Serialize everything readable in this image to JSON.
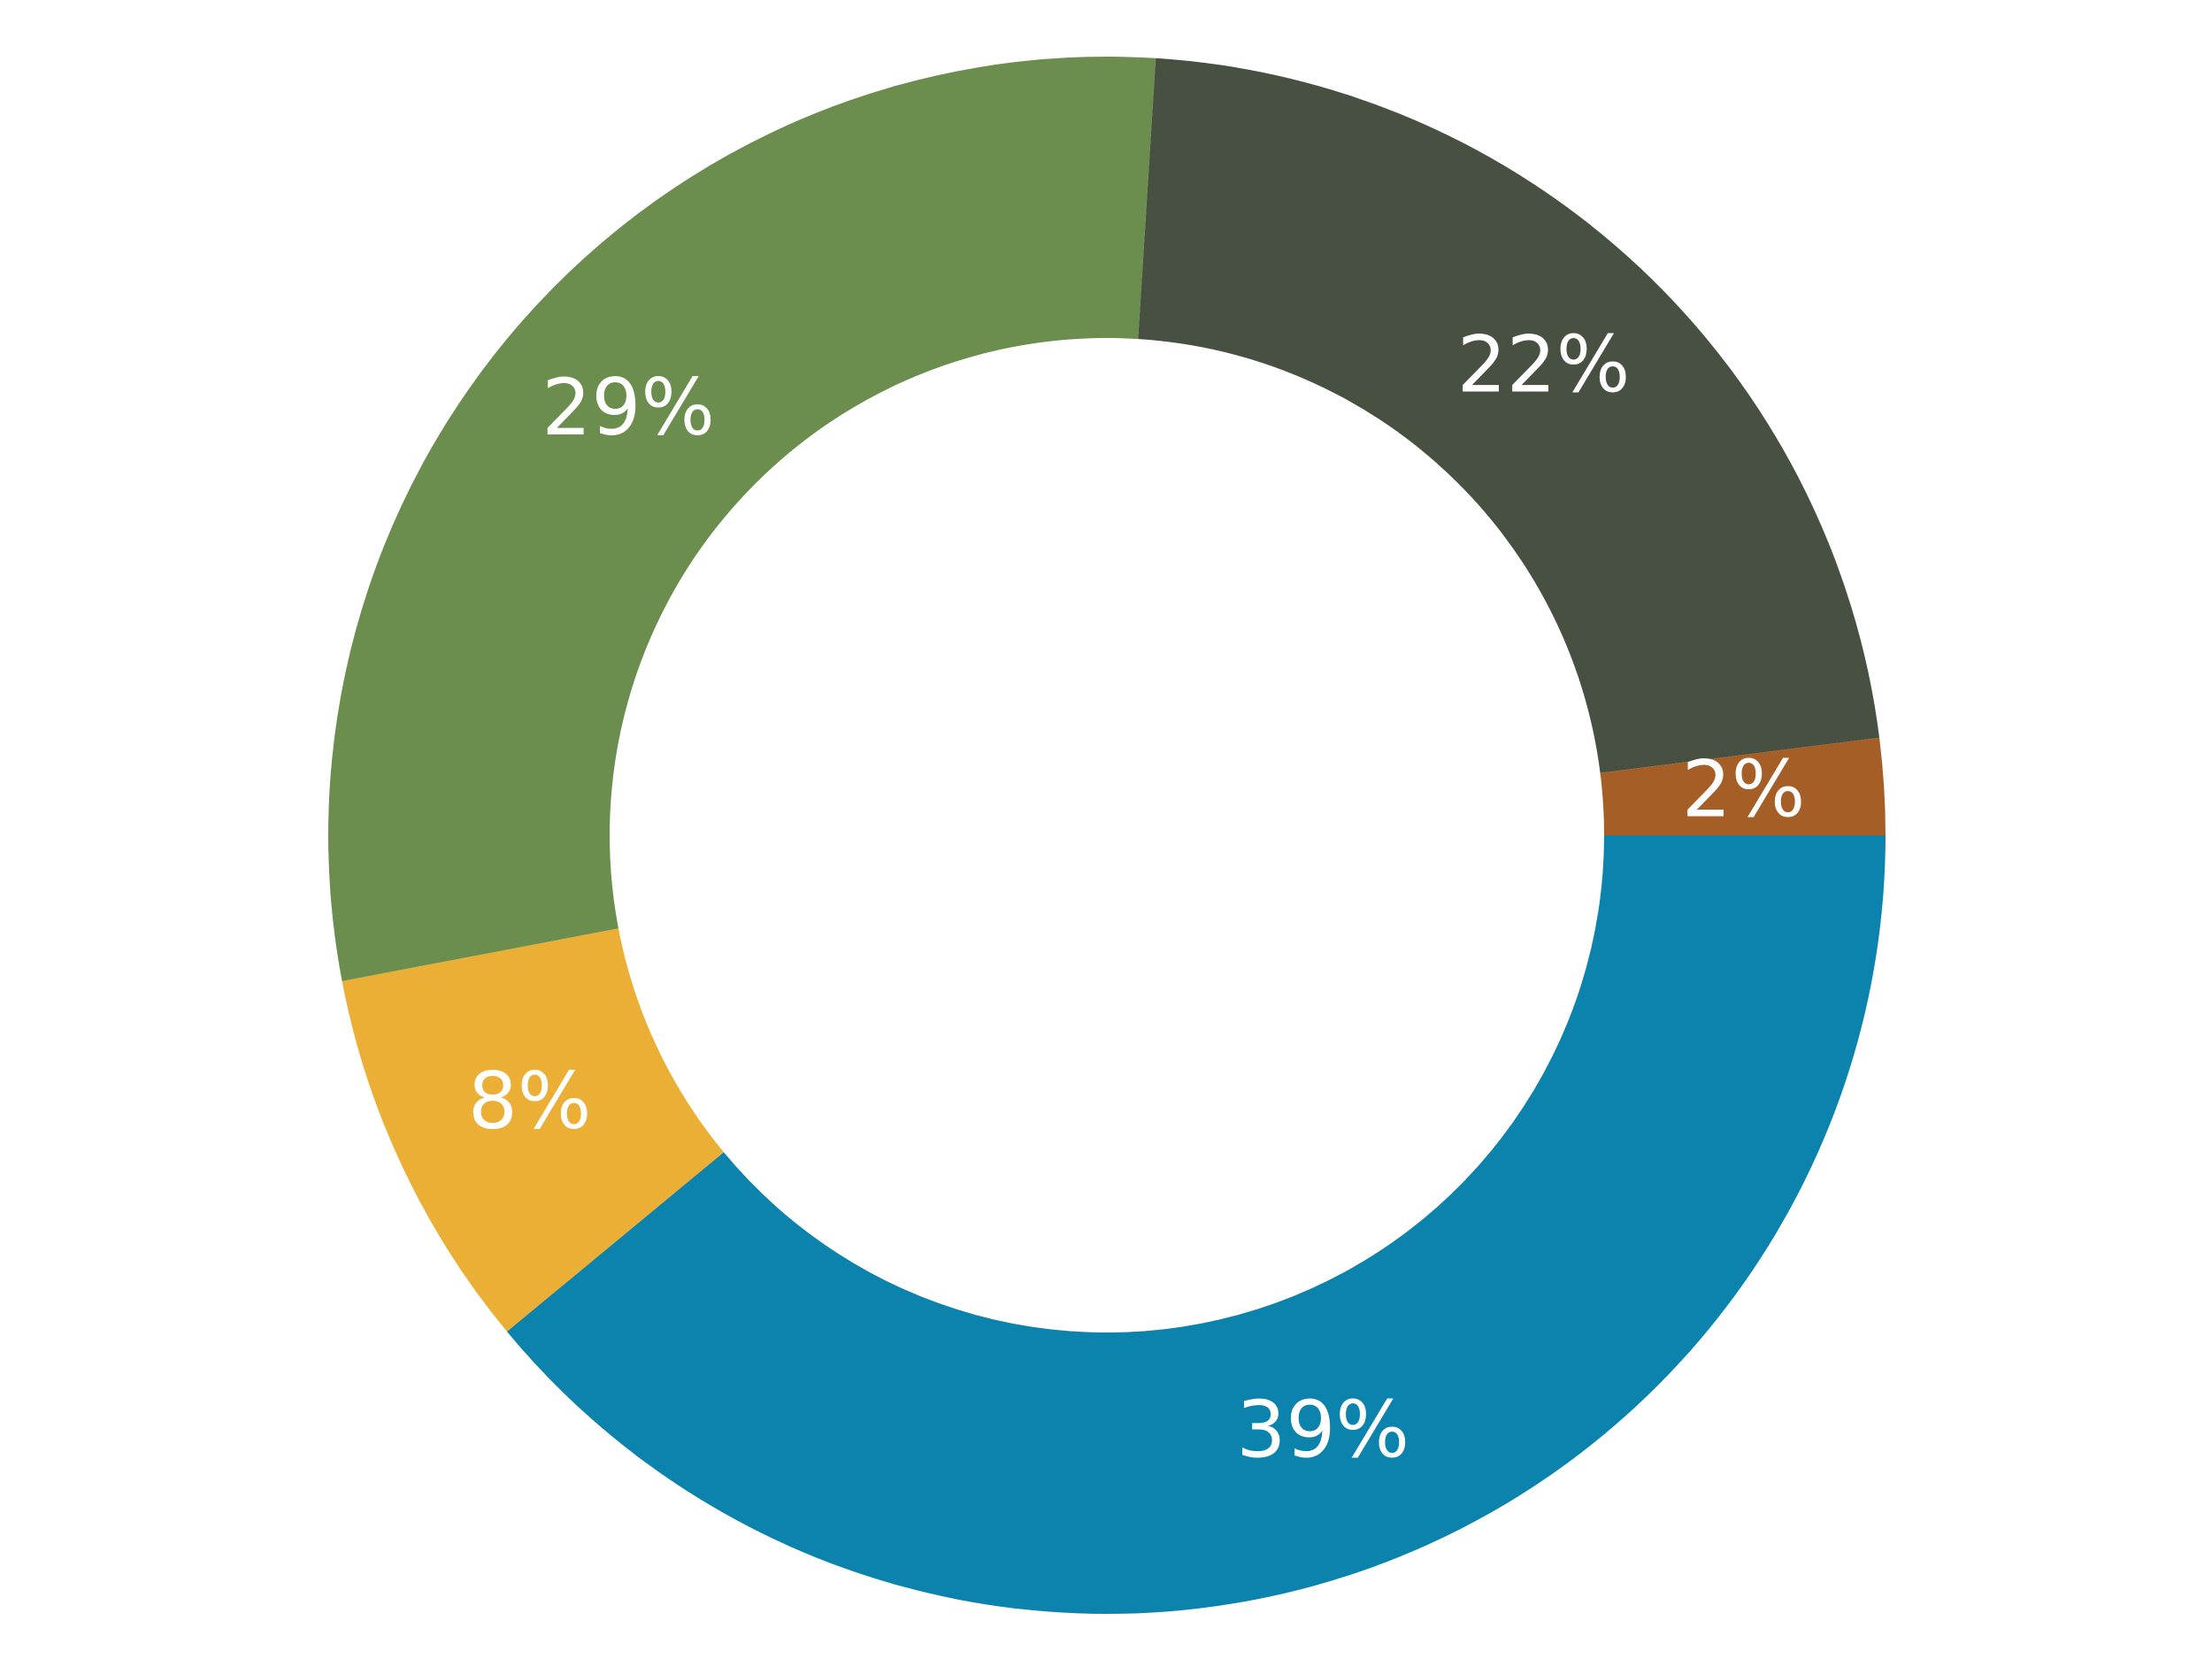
{
  "chart_data": {
    "type": "donut",
    "values": [
      39,
      8,
      29,
      22,
      2
    ],
    "value_labels": [
      "39%",
      "8%",
      "29%",
      "22%",
      "2%"
    ],
    "colors": [
      "#0c83ad",
      "#ecaf35",
      "#6b8e4e",
      "#475041",
      "#a65e27"
    ]
  }
}
